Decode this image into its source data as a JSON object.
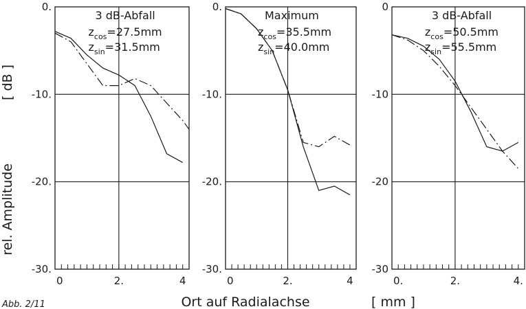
{
  "ylabel": "rel. Amplitude",
  "yunit": "[ dB ]",
  "xlabel": "Ort auf Radialachse",
  "xunit": "[ mm ]",
  "caption": "Abb. 2/11",
  "chart_data": [
    {
      "type": "line",
      "xlim": [
        0,
        4.2
      ],
      "ylim": [
        -30,
        0
      ],
      "x_ticks": [
        "0",
        "2.",
        "4"
      ],
      "y_ticks": [
        "0.",
        "-10.",
        "-20.",
        "-30."
      ],
      "vertical_line_x": 2,
      "grid": "horizontal at -10 and -20",
      "annotation": {
        "title": "3 dB-Abfall",
        "line1_prefix": "z",
        "line1_sub": "cos",
        "line1_value": "=27.5mm",
        "line2_prefix": "z",
        "line2_sub": "sin",
        "line2_value": "=31.5mm"
      },
      "series": [
        {
          "style": "solid",
          "points": [
            [
              0,
              -2.8
            ],
            [
              0.5,
              -3.6
            ],
            [
              1.0,
              -5.5
            ],
            [
              1.5,
              -7.0
            ],
            [
              2.0,
              -7.8
            ],
            [
              2.5,
              -9.0
            ],
            [
              3.0,
              -12.5
            ],
            [
              3.5,
              -16.8
            ],
            [
              4.0,
              -17.8
            ]
          ]
        },
        {
          "style": "dash-dot",
          "points": [
            [
              0,
              -3.0
            ],
            [
              0.5,
              -4.0
            ],
            [
              1.0,
              -6.5
            ],
            [
              1.5,
              -9.0
            ],
            [
              2.0,
              -9.0
            ],
            [
              2.5,
              -8.2
            ],
            [
              3.0,
              -9.0
            ],
            [
              3.5,
              -11.0
            ],
            [
              4.0,
              -13.0
            ],
            [
              4.2,
              -14.0
            ]
          ]
        }
      ]
    },
    {
      "type": "line",
      "xlim": [
        0,
        4.2
      ],
      "ylim": [
        -30,
        0
      ],
      "x_ticks": [
        "0",
        "2.",
        "4"
      ],
      "y_ticks": [
        "0.",
        "-10.",
        "-20.",
        "-30."
      ],
      "vertical_line_x": 2,
      "grid": "horizontal at -10 and -20",
      "annotation": {
        "title": "Maximum",
        "line1_prefix": "z",
        "line1_sub": "cos",
        "line1_value": "=35.5mm",
        "line2_prefix": "z",
        "line2_sub": "sin",
        "line2_value": "=40.0mm"
      },
      "series": [
        {
          "style": "solid",
          "points": [
            [
              0,
              -0.2
            ],
            [
              0.5,
              -0.8
            ],
            [
              1.0,
              -2.5
            ],
            [
              1.5,
              -5.0
            ],
            [
              2.0,
              -9.5
            ],
            [
              2.5,
              -16.0
            ],
            [
              3.0,
              -21.0
            ],
            [
              3.5,
              -20.5
            ],
            [
              4.0,
              -21.5
            ]
          ]
        },
        {
          "style": "dash-dot",
          "points": [
            [
              0,
              -0.2
            ],
            [
              0.5,
              -0.8
            ],
            [
              1.0,
              -2.5
            ],
            [
              1.5,
              -5.0
            ],
            [
              2.0,
              -9.5
            ],
            [
              2.5,
              -15.5
            ],
            [
              3.0,
              -16.0
            ],
            [
              3.5,
              -14.8
            ],
            [
              4.0,
              -15.8
            ]
          ]
        }
      ]
    },
    {
      "type": "line",
      "xlim": [
        0,
        4.2
      ],
      "ylim": [
        -30,
        0
      ],
      "x_ticks": [
        "0.",
        "2.",
        "4."
      ],
      "y_ticks": [
        "0",
        "-10",
        "-20",
        "-30"
      ],
      "vertical_line_x": 2,
      "grid": "horizontal at -10 and -20",
      "annotation": {
        "title": "3 dB-Abfall",
        "line1_prefix": "z",
        "line1_sub": "cos",
        "line1_value": "=50.5mm",
        "line2_prefix": "z",
        "line2_sub": "sin",
        "line2_value": "=55.5mm"
      },
      "series": [
        {
          "style": "solid",
          "points": [
            [
              0,
              -3.2
            ],
            [
              0.5,
              -3.6
            ],
            [
              1.0,
              -4.5
            ],
            [
              1.5,
              -6.0
            ],
            [
              2.0,
              -8.5
            ],
            [
              2.5,
              -12.0
            ],
            [
              3.0,
              -16.0
            ],
            [
              3.5,
              -16.5
            ],
            [
              4.0,
              -15.5
            ]
          ]
        },
        {
          "style": "dash-dot",
          "points": [
            [
              0,
              -3.2
            ],
            [
              0.5,
              -3.8
            ],
            [
              1.0,
              -5.0
            ],
            [
              1.5,
              -6.8
            ],
            [
              2.0,
              -9.0
            ],
            [
              2.5,
              -11.5
            ],
            [
              3.0,
              -14.0
            ],
            [
              3.5,
              -16.5
            ],
            [
              4.0,
              -18.5
            ]
          ]
        }
      ]
    }
  ]
}
